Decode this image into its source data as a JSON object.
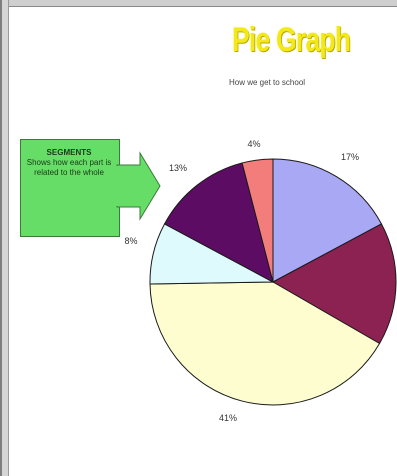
{
  "title": "Pie Graph",
  "subtitle": "How we get to school",
  "callout": {
    "heading": "SEGMENTS",
    "body": "Shows how each part is related to the whole"
  },
  "colors": {
    "title": "#f2e81a",
    "callout": "#66dd66"
  },
  "chart_data": {
    "type": "pie",
    "title": "Pie Graph",
    "subtitle": "How we get to school",
    "slices": [
      {
        "value": 17,
        "label": "17%",
        "color": "#a9a8f5"
      },
      {
        "value": 16,
        "label": "",
        "color": "#8b2252"
      },
      {
        "value": 41,
        "label": "41%",
        "color": "#fdfdd0"
      },
      {
        "value": 8,
        "label": "8%",
        "color": "#dffafc"
      },
      {
        "value": 13,
        "label": "13%",
        "color": "#5c0d63"
      },
      {
        "value": 4,
        "label": "4%",
        "color": "#f37d7a"
      }
    ]
  }
}
